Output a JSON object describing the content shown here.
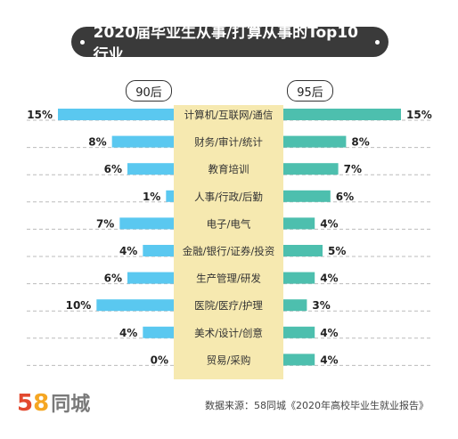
{
  "title": "2020届毕业生从事/打算从事的Top10行业",
  "colors": {
    "left": "#5ac8f0",
    "right": "#4dbfae",
    "center": "#f6e9b0",
    "dash": "#bbbbbb",
    "title_bg": "#3a3a3a"
  },
  "chart_data": {
    "type": "bar",
    "title": "2020届毕业生从事/打算从事的Top10行业",
    "categories": [
      "计算机/互联网/通信",
      "财务/审计/统计",
      "教育培训",
      "人事/行政/后勤",
      "电子/电气",
      "金融/银行/证券/投资",
      "生产管理/研发",
      "医院/医疗/护理",
      "美术/设计/创意",
      "贸易/采购"
    ],
    "series": [
      {
        "name": "90后",
        "values": [
          15,
          8,
          6,
          1,
          7,
          4,
          6,
          10,
          4,
          0
        ]
      },
      {
        "name": "95后",
        "values": [
          15,
          8,
          7,
          6,
          4,
          5,
          4,
          3,
          4,
          4
        ]
      }
    ],
    "unit": "%",
    "xlim": [
      0,
      15
    ]
  },
  "footer": {
    "logo_5": "5",
    "logo_8": "8",
    "logo_text": "同城",
    "source": "数据来源：58同城《2020年高校毕业生就业报告》"
  }
}
